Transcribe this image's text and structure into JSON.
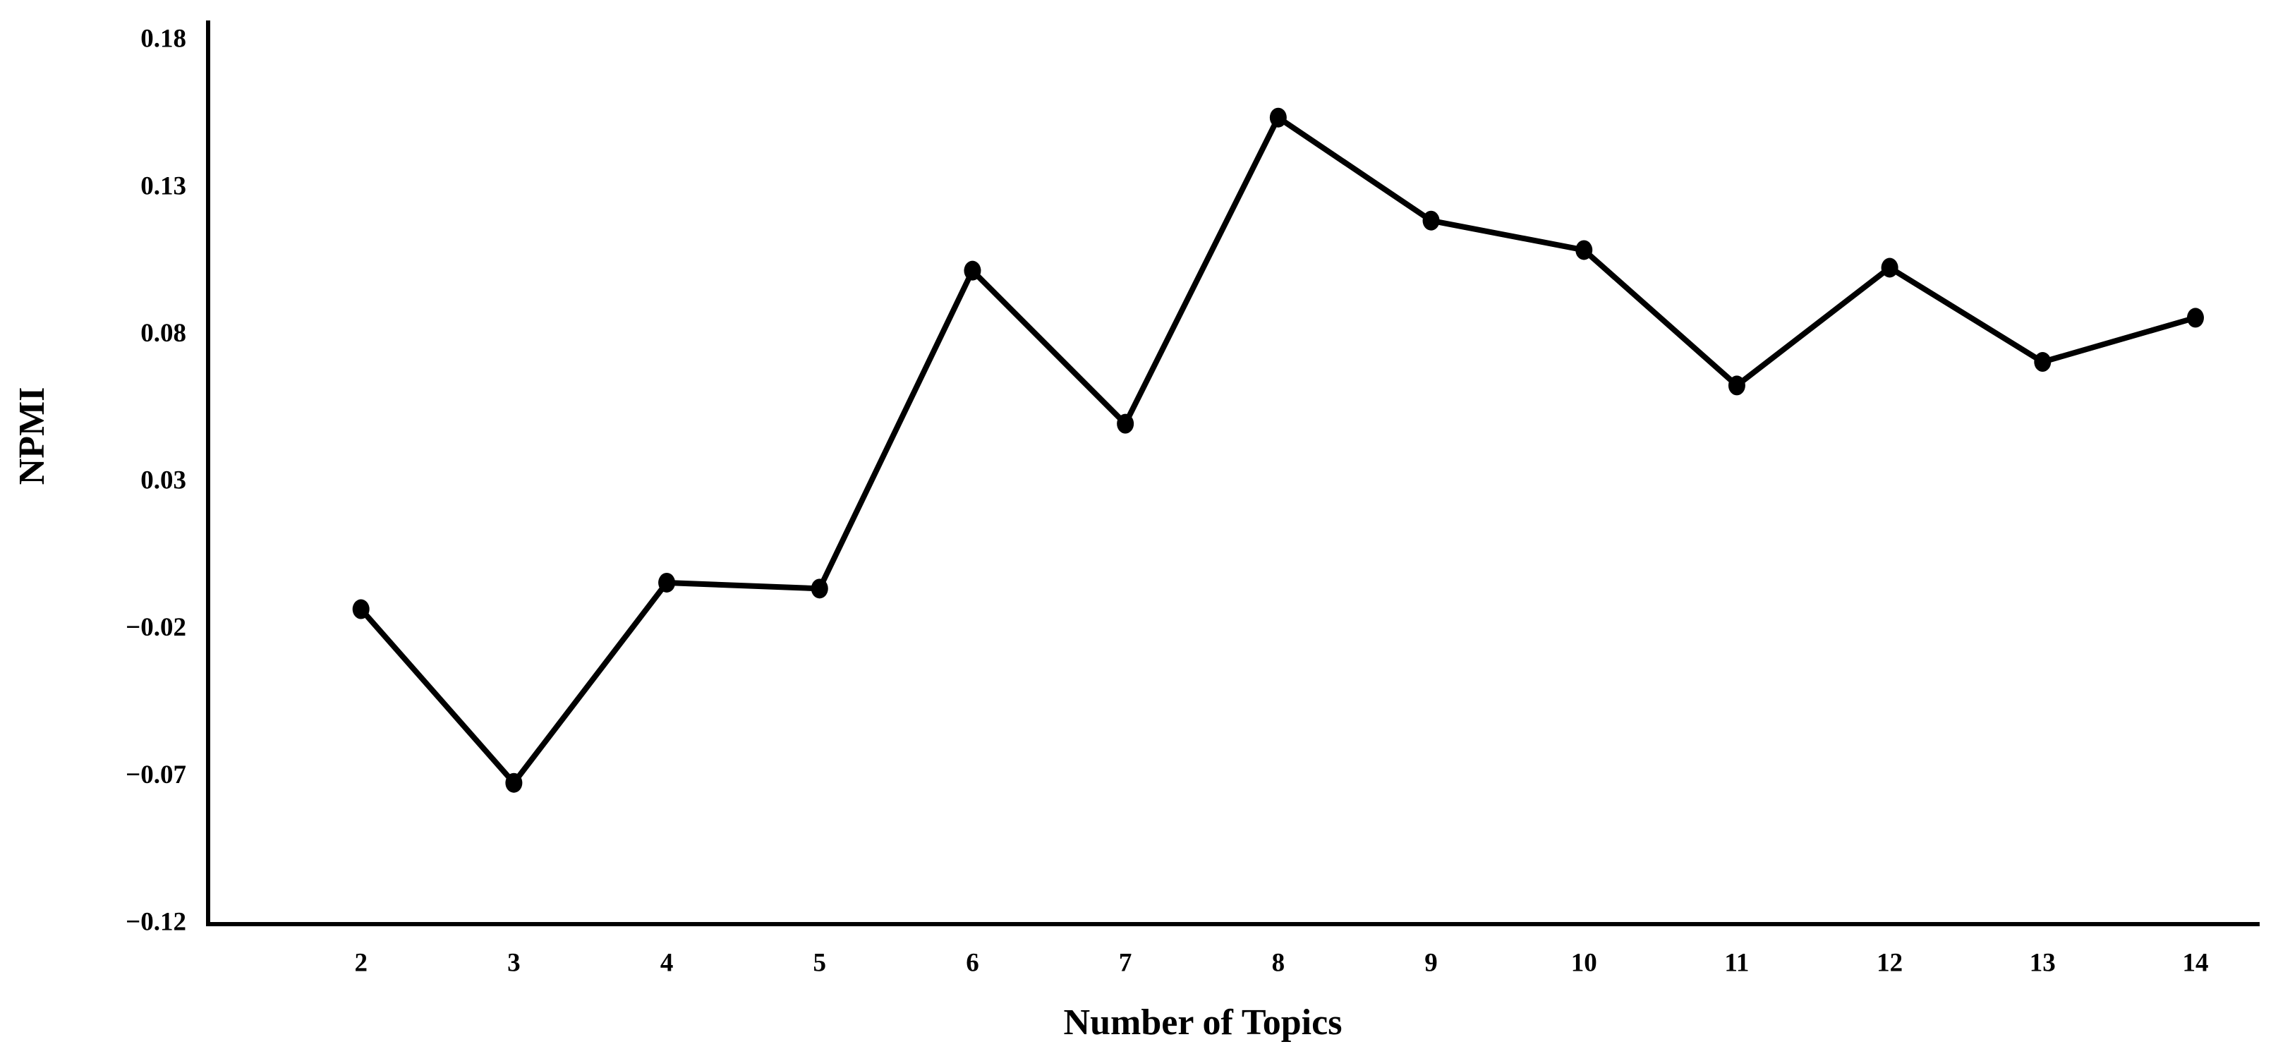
{
  "chart_data": {
    "type": "line",
    "x_label": "Number of Topics",
    "y_label": "NPMI",
    "x": [
      2,
      3,
      4,
      5,
      6,
      7,
      8,
      9,
      10,
      11,
      12,
      13,
      14
    ],
    "series": [
      {
        "color": "#000000",
        "values": [
          -0.013,
          -0.072,
          -0.004,
          -0.006,
          0.102,
          0.05,
          0.154,
          0.119,
          0.109,
          0.063,
          0.103,
          0.071,
          0.086
        ]
      }
    ],
    "xlim": [
      1,
      14.42
    ],
    "xticks": [
      2,
      3,
      4,
      5,
      6,
      7,
      8,
      9,
      10,
      11,
      12,
      13,
      14
    ],
    "ylim": [
      -0.12,
      0.187
    ],
    "yticks": [
      {
        "value": -0.12,
        "label": "−0.12"
      },
      {
        "value": -0.07,
        "label": "−0.07"
      },
      {
        "value": -0.02,
        "label": "−0.02"
      },
      0.03,
      0.08,
      0.13,
      0.18
    ],
    "grid": false,
    "markers": true
  }
}
